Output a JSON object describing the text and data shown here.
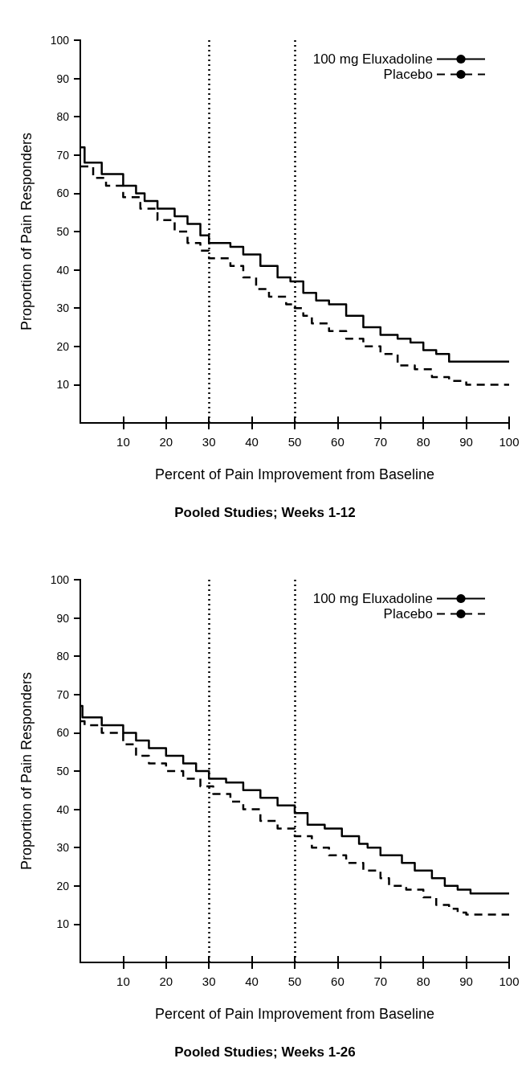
{
  "chart_data": [
    {
      "type": "step",
      "title": "Pooled Studies; Weeks 1-12",
      "xlabel": "Percent of Pain Improvement from Baseline",
      "ylabel": "Proportion of Pain Responders",
      "xlim": [
        0,
        100
      ],
      "xticks": [
        10,
        20,
        30,
        40,
        50,
        60,
        70,
        80,
        90,
        100
      ],
      "ylim": [
        0,
        100
      ],
      "yticks": [
        10,
        20,
        30,
        40,
        50,
        60,
        70,
        80,
        90,
        100
      ],
      "grid": false,
      "legend": "top right",
      "marker": "none",
      "ref_lines": [
        {
          "axis": "x",
          "value": 30,
          "line_style": "dotted",
          "color": "#000000"
        },
        {
          "axis": "x",
          "value": 50,
          "line_style": "dotted",
          "color": "#000000"
        }
      ],
      "series": [
        {
          "name": "100 mg Eluxadoline",
          "color": "#000000",
          "line_style": "solid",
          "x": [
            0,
            1,
            5,
            10,
            13,
            15,
            18,
            22,
            25,
            28,
            30,
            35,
            38,
            42,
            46,
            49,
            52,
            55,
            58,
            62,
            66,
            70,
            74,
            77,
            80,
            83,
            86,
            90,
            100
          ],
          "values": [
            72,
            68,
            65,
            62,
            60,
            58,
            56,
            54,
            52,
            49,
            47,
            46,
            44,
            41,
            38,
            37,
            34,
            32,
            31,
            28,
            25,
            23,
            22,
            21,
            19,
            18,
            16,
            16,
            16
          ]
        },
        {
          "name": "Placebo",
          "color": "#000000",
          "line_style": "dashed",
          "x": [
            0,
            3,
            6,
            10,
            14,
            18,
            22,
            25,
            28,
            30,
            35,
            38,
            41,
            44,
            48,
            50,
            52,
            54,
            58,
            62,
            66,
            70,
            74,
            78,
            82,
            86,
            90,
            100
          ],
          "values": [
            67,
            64,
            62,
            59,
            56,
            53,
            50,
            47,
            45,
            43,
            41,
            38,
            35,
            33,
            31,
            30,
            28,
            26,
            24,
            22,
            20,
            18,
            15,
            14,
            12,
            11,
            10,
            10
          ]
        }
      ]
    },
    {
      "type": "step",
      "title": "Pooled Studies; Weeks 1-26",
      "xlabel": "Percent of Pain Improvement from Baseline",
      "ylabel": "Proportion of Pain Responders",
      "xlim": [
        0,
        100
      ],
      "xticks": [
        10,
        20,
        30,
        40,
        50,
        60,
        70,
        80,
        90,
        100
      ],
      "ylim": [
        0,
        100
      ],
      "yticks": [
        10,
        20,
        30,
        40,
        50,
        60,
        70,
        80,
        90,
        100
      ],
      "grid": false,
      "legend": "top right",
      "marker": "none",
      "ref_lines": [
        {
          "axis": "x",
          "value": 30,
          "line_style": "dotted",
          "color": "#000000"
        },
        {
          "axis": "x",
          "value": 50,
          "line_style": "dotted",
          "color": "#000000"
        }
      ],
      "series": [
        {
          "name": "100 mg Eluxadoline",
          "color": "#000000",
          "line_style": "solid",
          "x": [
            0,
            0.5,
            5,
            10,
            13,
            16,
            20,
            24,
            27,
            30,
            34,
            38,
            42,
            46,
            50,
            53,
            57,
            61,
            65,
            67,
            70,
            75,
            78,
            82,
            85,
            88,
            91,
            100
          ],
          "values": [
            67,
            64,
            62,
            60,
            58,
            56,
            54,
            52,
            50,
            48,
            47,
            45,
            43,
            41,
            39,
            36,
            35,
            33,
            31,
            30,
            28,
            26,
            24,
            22,
            20,
            19,
            18,
            18
          ]
        },
        {
          "name": "Placebo",
          "color": "#000000",
          "line_style": "dashed",
          "x": [
            0,
            1,
            5,
            10,
            13,
            16,
            20,
            24,
            28,
            31,
            35,
            38,
            42,
            46,
            50,
            54,
            58,
            62,
            66,
            70,
            72,
            76,
            80,
            83,
            86,
            88,
            90,
            100
          ],
          "values": [
            63,
            62,
            60,
            57,
            54,
            52,
            50,
            48,
            46,
            44,
            42,
            40,
            37,
            35,
            33,
            30,
            28,
            26,
            24,
            22,
            20,
            19,
            17,
            15,
            14,
            13,
            12.5,
            12.5
          ]
        }
      ]
    }
  ]
}
